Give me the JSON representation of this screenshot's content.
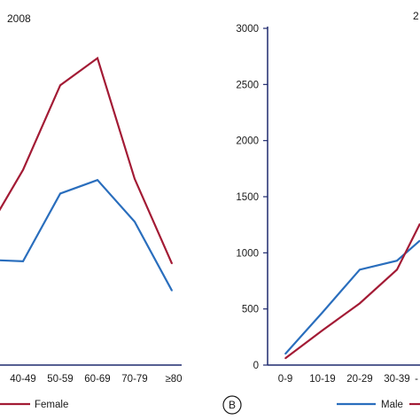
{
  "chart_data": [
    {
      "type": "line",
      "title": "2008",
      "categories": [
        "40-49",
        "50-59",
        "60-69",
        "70-79",
        "≥80"
      ],
      "visible_partial_tick": "0",
      "series": [
        {
          "name": "Male",
          "color": "#2a6ebd",
          "values": [
            920,
            1520,
            1640,
            1270,
            660
          ]
        },
        {
          "name": "Female",
          "color": "#a31b35",
          "values": [
            1730,
            2480,
            2720,
            1650,
            900
          ]
        }
      ],
      "left_edge_values": {
        "Male": 930,
        "Female": 1300
      },
      "ylim": [
        0,
        3000
      ],
      "legend": [
        {
          "series": "Female",
          "label": "Female"
        }
      ],
      "legend_placement": "bottom"
    },
    {
      "type": "line",
      "panel_label": "B",
      "title_fragment": "2",
      "categories": [
        "0-9",
        "10-19",
        "20-29",
        "30-39"
      ],
      "edge_tick": "-",
      "yticks": [
        "0",
        "500",
        "1000",
        "1500",
        "2000",
        "2500",
        "3000"
      ],
      "ylim": [
        0,
        3000
      ],
      "series": [
        {
          "name": "Male",
          "color": "#2a6ebd",
          "values": [
            100,
            470,
            850,
            930
          ]
        },
        {
          "name": "Female",
          "color": "#a31b35",
          "values": [
            60,
            310,
            550,
            850
          ]
        }
      ],
      "right_edge_values": {
        "Male": 1110,
        "Female": 1260
      },
      "legend": [
        {
          "series": "Male",
          "label": "Male"
        }
      ],
      "legend_placement": "bottom"
    }
  ]
}
